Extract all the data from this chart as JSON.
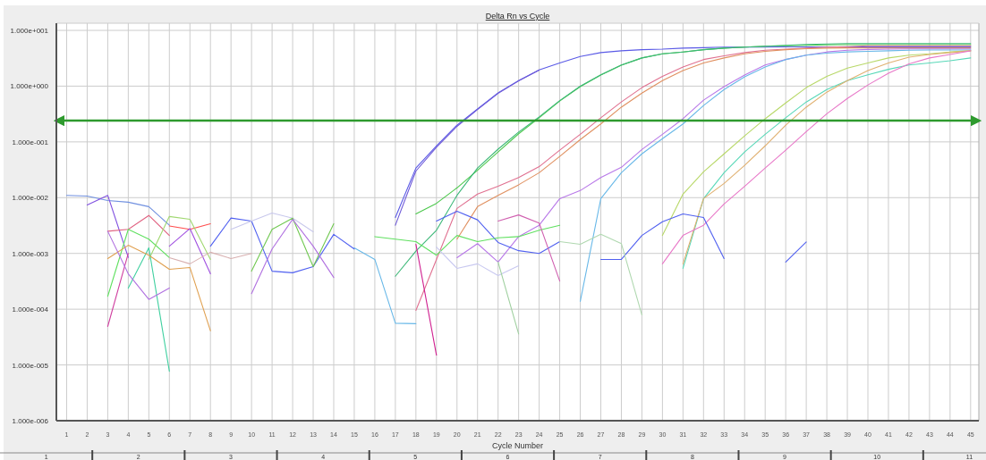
{
  "chart_data": {
    "type": "line",
    "title": "Delta Rn vs Cycle",
    "xlabel": "Cycle Number",
    "log": "y",
    "grid": true,
    "xlim": [
      0.5,
      45.4
    ],
    "xticks": [
      1,
      2,
      3,
      4,
      5,
      6,
      7,
      8,
      9,
      10,
      11,
      12,
      13,
      14,
      15,
      16,
      17,
      18,
      19,
      20,
      21,
      22,
      23,
      24,
      25,
      26,
      27,
      28,
      29,
      30,
      31,
      32,
      33,
      34,
      35,
      36,
      37,
      38,
      39,
      40,
      41,
      42,
      43,
      44,
      45
    ],
    "ylim": [
      1e-06,
      10
    ],
    "yticks": [
      {
        "value": 1e-06,
        "label": "1.000e-006"
      },
      {
        "value": 1e-05,
        "label": "1.000e-005"
      },
      {
        "value": 0.0001,
        "label": "1.000e-004"
      },
      {
        "value": 0.001,
        "label": "1.000e-003"
      },
      {
        "value": 0.01,
        "label": "1.000e-002"
      },
      {
        "value": 0.1,
        "label": "1.000e-001"
      },
      {
        "value": 1,
        "label": "1.000e+000"
      },
      {
        "value": 10,
        "label": "1.000e+001"
      }
    ],
    "x2lim": [
      0,
      10.68
    ],
    "x2ticks": [
      {
        "value": 0.5,
        "label": "1"
      },
      {
        "value": 1.5,
        "label": "2"
      },
      {
        "value": 2.5,
        "label": "3"
      },
      {
        "value": 3.5,
        "label": "4"
      },
      {
        "value": 4.5,
        "label": "5"
      },
      {
        "value": 5.5,
        "label": "6"
      },
      {
        "value": 6.5,
        "label": "7"
      },
      {
        "value": 7.5,
        "label": "8"
      },
      {
        "value": 8.5,
        "label": "9"
      },
      {
        "value": 9.5,
        "label": "10"
      },
      {
        "value": 10.5,
        "label": "11"
      }
    ],
    "ref_lines": [
      {
        "axis": "y",
        "value": 0.24,
        "color": "#2e9a2e"
      }
    ],
    "series": [
      {
        "color": "#5a5ae6",
        "x": [
          17,
          18,
          19,
          20,
          21,
          22,
          23,
          24,
          25,
          26,
          27,
          28,
          29,
          30,
          31,
          32,
          33,
          34,
          35,
          36,
          37,
          38,
          39,
          40,
          41,
          42,
          43,
          44,
          45
        ],
        "values": [
          0.0044,
          0.034,
          0.085,
          0.2,
          0.39,
          0.76,
          1.26,
          1.96,
          2.6,
          3.4,
          4.0,
          4.3,
          4.5,
          4.6,
          4.8,
          4.9,
          5.0,
          5.0,
          5.0,
          5.05,
          5.05,
          5.05,
          5.05,
          5.05,
          5.05,
          5.05,
          5.05,
          5.05,
          5.05
        ]
      },
      {
        "color": "#6f5ad8",
        "x": [
          17,
          18,
          19,
          20,
          21,
          22,
          23,
          24
        ],
        "values": [
          0.0032,
          0.03,
          0.08,
          0.19,
          0.38,
          0.74,
          1.24,
          1.94
        ]
      },
      {
        "color": "#4cc84c",
        "x": [
          18,
          19,
          20,
          21,
          22,
          23,
          24,
          25,
          26,
          27,
          28,
          29,
          30,
          31,
          32,
          33,
          34,
          35,
          36,
          37,
          38,
          39,
          40,
          41,
          42,
          43,
          44,
          45
        ],
        "values": [
          0.0051,
          0.0079,
          0.015,
          0.031,
          0.066,
          0.14,
          0.27,
          0.54,
          0.98,
          1.58,
          2.37,
          3.2,
          3.8,
          4.1,
          4.5,
          4.8,
          5.0,
          5.2,
          5.3,
          5.4,
          5.5,
          5.55,
          5.55,
          5.55,
          5.55,
          5.55,
          5.55,
          5.55
        ]
      },
      {
        "color": "#3cb878",
        "x": [
          17,
          18,
          19,
          20,
          21,
          22,
          23,
          24,
          25,
          26,
          27,
          28,
          29,
          30,
          31,
          32,
          33,
          34,
          35,
          36,
          37,
          38,
          39,
          40,
          41,
          42,
          43,
          44,
          45
        ],
        "values": [
          0.00039,
          0.0011,
          0.0026,
          0.011,
          0.034,
          0.074,
          0.15,
          0.28,
          0.55,
          1.0,
          1.6,
          2.4,
          3.2,
          3.8,
          4.1,
          4.5,
          4.8,
          5.0,
          5.2,
          5.4,
          5.6,
          5.7,
          5.8,
          5.8,
          5.8,
          5.8,
          5.8,
          5.8,
          5.8
        ]
      },
      {
        "color": "#e07090",
        "x": [
          18,
          19,
          20,
          21,
          22,
          23,
          24,
          25,
          26,
          27,
          28,
          29,
          30,
          31,
          32,
          33,
          34,
          35,
          36,
          37,
          38,
          39,
          40,
          41,
          42,
          43,
          44,
          45
        ],
        "values": [
          9.5e-05,
          0.00078,
          0.0064,
          0.0116,
          0.016,
          0.023,
          0.036,
          0.071,
          0.137,
          0.27,
          0.52,
          0.94,
          1.5,
          2.2,
          3.0,
          3.5,
          4.0,
          4.4,
          4.6,
          4.8,
          5.0,
          5.1,
          5.3,
          5.3,
          5.3,
          5.3,
          5.3,
          5.3
        ]
      },
      {
        "color": "#e09060",
        "x": [
          20,
          21,
          22,
          23,
          24,
          25,
          26,
          27,
          28,
          29,
          30,
          31,
          32,
          33,
          34,
          35,
          36,
          37,
          38,
          39,
          40,
          41,
          42,
          43,
          44,
          45
        ],
        "values": [
          0.0018,
          0.0069,
          0.011,
          0.017,
          0.028,
          0.055,
          0.11,
          0.21,
          0.42,
          0.75,
          1.26,
          1.9,
          2.6,
          3.2,
          3.8,
          4.2,
          4.5,
          4.7,
          4.8,
          4.85,
          4.85,
          4.85,
          4.85,
          4.85,
          4.85,
          4.85
        ]
      },
      {
        "color": "#b878e8",
        "x": [
          20,
          21,
          22,
          23,
          24,
          25,
          26,
          27,
          28,
          29,
          30,
          31,
          32,
          33,
          34,
          35,
          36,
          37,
          38,
          39,
          40,
          41,
          42,
          43,
          44,
          45
        ],
        "values": [
          0.00084,
          0.0015,
          0.0007,
          0.002,
          0.0032,
          0.0096,
          0.0134,
          0.023,
          0.035,
          0.073,
          0.137,
          0.26,
          0.56,
          0.98,
          1.58,
          2.4,
          3.0,
          3.6,
          4.1,
          4.4,
          4.55,
          4.6,
          4.65,
          4.65,
          4.65,
          4.65
        ]
      },
      {
        "color": "#68b8e8",
        "x": [
          26,
          27,
          28,
          29,
          30,
          31,
          32,
          33,
          34,
          35,
          36,
          37,
          38,
          39,
          40,
          41,
          42,
          43,
          44,
          45
        ],
        "values": [
          0.000138,
          0.0096,
          0.028,
          0.061,
          0.114,
          0.21,
          0.45,
          0.87,
          1.47,
          2.2,
          3.0,
          3.6,
          3.9,
          4.1,
          4.2,
          4.3,
          4.4,
          4.45,
          4.45,
          4.45
        ]
      },
      {
        "color": "#68b8e8",
        "x": [
          15,
          16,
          17,
          18
        ],
        "values": [
          0.00126,
          0.00078,
          5.6e-05,
          5.5e-05
        ]
      },
      {
        "color": "#b8d868",
        "x": [
          30,
          31,
          32,
          33,
          34,
          35,
          36,
          37,
          38,
          39,
          40,
          41,
          42,
          43,
          44,
          45
        ],
        "values": [
          0.0021,
          0.0116,
          0.029,
          0.061,
          0.128,
          0.26,
          0.5,
          0.94,
          1.5,
          2.1,
          2.6,
          3.2,
          3.6,
          3.8,
          4.1,
          4.3
        ]
      },
      {
        "color": "#58d8b8",
        "x": [
          31,
          32,
          33,
          34,
          35,
          36,
          37,
          38,
          39,
          40,
          41,
          42,
          43,
          44,
          45
        ],
        "values": [
          0.00054,
          0.0096,
          0.028,
          0.066,
          0.137,
          0.27,
          0.52,
          0.87,
          1.26,
          1.6,
          2.0,
          2.4,
          2.6,
          2.85,
          3.2
        ]
      },
      {
        "color": "#e0b070",
        "x": [
          31,
          32,
          33,
          34,
          35,
          36,
          37,
          38,
          39,
          40,
          41,
          42,
          43,
          44,
          45
        ],
        "values": [
          0.00065,
          0.0096,
          0.018,
          0.038,
          0.085,
          0.2,
          0.42,
          0.78,
          1.26,
          1.9,
          2.6,
          3.3,
          3.7,
          4.0,
          4.3
        ]
      },
      {
        "color": "#e878c8",
        "x": [
          30,
          31,
          32,
          33,
          34,
          35,
          36,
          37,
          38,
          39,
          40,
          41,
          42,
          43,
          44,
          45
        ],
        "values": [
          0.00065,
          0.0021,
          0.0032,
          0.0077,
          0.016,
          0.034,
          0.071,
          0.153,
          0.32,
          0.6,
          1.05,
          1.7,
          2.5,
          3.2,
          3.7,
          4.3
        ]
      },
      {
        "color": "#7090e0",
        "x": [
          1,
          2,
          3,
          4,
          5,
          6
        ],
        "values": [
          0.011,
          0.0107,
          0.0089,
          0.0083,
          0.0069,
          0.0032
        ]
      },
      {
        "color": "#8050e0",
        "x": [
          2,
          3,
          4
        ],
        "values": [
          0.0074,
          0.011,
          0.00085
        ]
      },
      {
        "color": "#5060f0",
        "x": [
          8,
          9,
          10,
          11,
          12,
          13,
          14,
          15,
          16,
          17,
          18,
          19,
          20,
          21,
          22,
          23,
          24,
          25,
          26,
          27,
          28,
          29,
          30,
          31,
          32,
          33,
          34,
          35,
          36,
          37
        ],
        "values": [
          0.00135,
          0.0043,
          0.0038,
          0.00048,
          0.00045,
          0.00058,
          0.0022,
          0.0012,
          null,
          null,
          null,
          0.0038,
          0.0057,
          0.004,
          0.00157,
          0.00112,
          0.001,
          0.00163,
          null,
          0.00078,
          0.00078,
          0.0021,
          0.0037,
          0.0051,
          0.0044,
          0.00081,
          null,
          null,
          0.0007,
          0.0016
        ]
      },
      {
        "color": "#e06080",
        "x": [
          3,
          4,
          5,
          6
        ],
        "values": [
          0.0025,
          0.0027,
          0.0048,
          0.0021
        ]
      },
      {
        "color": "#ff5050",
        "x": [
          6,
          7,
          8
        ],
        "values": [
          0.0031,
          0.0027,
          0.0034
        ]
      },
      {
        "color": "#60e060",
        "x": [
          3,
          4,
          5,
          6
        ],
        "values": [
          0.00017,
          0.0027,
          0.0018,
          0.00084
        ]
      },
      {
        "color": "#a0d870",
        "x": [
          5,
          6,
          7,
          8
        ],
        "values": [
          0.00078,
          0.0046,
          0.0041,
          0.00078
        ]
      },
      {
        "color": "#40d0a0",
        "x": [
          4,
          5,
          6
        ],
        "values": [
          0.00024,
          0.00126,
          7.7e-06
        ]
      },
      {
        "color": "#d040a0",
        "x": [
          3,
          4
        ],
        "values": [
          4.9e-05,
          0.001
        ]
      },
      {
        "color": "#e0a050",
        "x": [
          3,
          4,
          5,
          6,
          7,
          8
        ],
        "values": [
          0.00081,
          0.0014,
          0.00093,
          0.00052,
          0.00056,
          4.1e-05
        ]
      },
      {
        "color": "#b070e0",
        "x": [
          3,
          4,
          5,
          6
        ],
        "values": [
          0.0025,
          0.00043,
          0.00015,
          0.00024
        ]
      },
      {
        "color": "#a050e0",
        "x": [
          6,
          7,
          8
        ],
        "values": [
          0.00135,
          0.0028,
          0.00043
        ]
      },
      {
        "color": "#d8b0b0",
        "x": [
          6,
          7,
          8,
          9,
          10
        ],
        "values": [
          0.00084,
          0.00065,
          0.00105,
          0.00081,
          0.001
        ]
      },
      {
        "color": "#c8c8ec",
        "x": [
          9,
          10,
          11,
          12,
          13
        ],
        "values": [
          0.0027,
          0.0038,
          0.0053,
          0.0043,
          0.00245
        ]
      },
      {
        "color": "#70c850",
        "x": [
          10,
          11,
          12,
          13,
          14
        ],
        "values": [
          0.00048,
          0.0027,
          0.0043,
          0.00058,
          0.0034
        ]
      },
      {
        "color": "#b070e0",
        "x": [
          10,
          11,
          12,
          13,
          14
        ],
        "values": [
          0.00019,
          0.0012,
          0.0041,
          0.00135,
          0.00037
        ]
      },
      {
        "color": "#60e060",
        "x": [
          16,
          17,
          18,
          19,
          20,
          21,
          22,
          23,
          24,
          25
        ],
        "values": [
          0.002,
          0.0018,
          0.00163,
          0.00093,
          0.0021,
          0.00163,
          0.0019,
          0.002,
          0.0026,
          0.0032
        ]
      },
      {
        "color": "#b0d8b0",
        "x": [
          25,
          26,
          27,
          28,
          29
        ],
        "values": [
          0.00163,
          0.00146,
          0.0022,
          0.0015,
          7.9e-05
        ]
      },
      {
        "color": "#d060b0",
        "x": [
          22,
          23,
          24,
          25
        ],
        "values": [
          0.0038,
          0.0049,
          0.0035,
          0.00032
        ]
      },
      {
        "color": "#d02090",
        "x": [
          18,
          19
        ],
        "values": [
          0.00146,
          1.5e-05
        ]
      },
      {
        "color": "#c8c8f0",
        "x": [
          19,
          20,
          21,
          22,
          23
        ],
        "values": [
          0.0013,
          0.00054,
          0.00065,
          0.0004,
          0.0006
        ]
      },
      {
        "color": "#a0d0a0",
        "x": [
          22,
          23
        ],
        "values": [
          0.0007,
          3.6e-05
        ]
      }
    ]
  }
}
